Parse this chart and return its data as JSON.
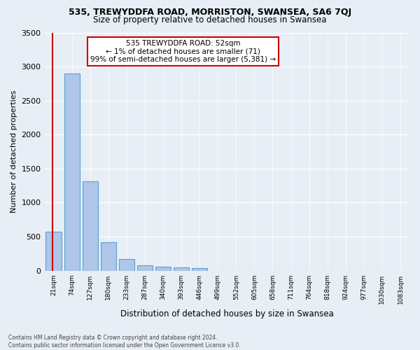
{
  "title1": "535, TREWYDDFA ROAD, MORRISTON, SWANSEA, SA6 7QJ",
  "title2": "Size of property relative to detached houses in Swansea",
  "xlabel": "Distribution of detached houses by size in Swansea",
  "ylabel": "Number of detached properties",
  "footer1": "Contains HM Land Registry data © Crown copyright and database right 2024.",
  "footer2": "Contains public sector information licensed under the Open Government Licence v3.0.",
  "bar_labels": [
    "21sqm",
    "74sqm",
    "127sqm",
    "180sqm",
    "233sqm",
    "287sqm",
    "340sqm",
    "393sqm",
    "446sqm",
    "499sqm",
    "552sqm",
    "605sqm",
    "658sqm",
    "711sqm",
    "764sqm",
    "818sqm",
    "924sqm",
    "977sqm",
    "1030sqm",
    "1083sqm"
  ],
  "bar_values": [
    570,
    2900,
    1310,
    415,
    175,
    80,
    55,
    45,
    35,
    0,
    0,
    0,
    0,
    0,
    0,
    0,
    0,
    0,
    0,
    0
  ],
  "bar_color": "#aec6e8",
  "bar_edge_color": "#5a9fd4",
  "property_line_color": "#cc0000",
  "property_line_x": -0.05,
  "annotation_title": "535 TREWYDDFA ROAD: 52sqm",
  "annotation_line1": "← 1% of detached houses are smaller (71)",
  "annotation_line2": "99% of semi-detached houses are larger (5,381) →",
  "annotation_box_facecolor": "#ffffff",
  "annotation_box_edgecolor": "#cc0000",
  "ylim": [
    0,
    3500
  ],
  "yticks": [
    0,
    500,
    1000,
    1500,
    2000,
    2500,
    3000,
    3500
  ],
  "background_color": "#e8eef5",
  "grid_color": "#ffffff"
}
